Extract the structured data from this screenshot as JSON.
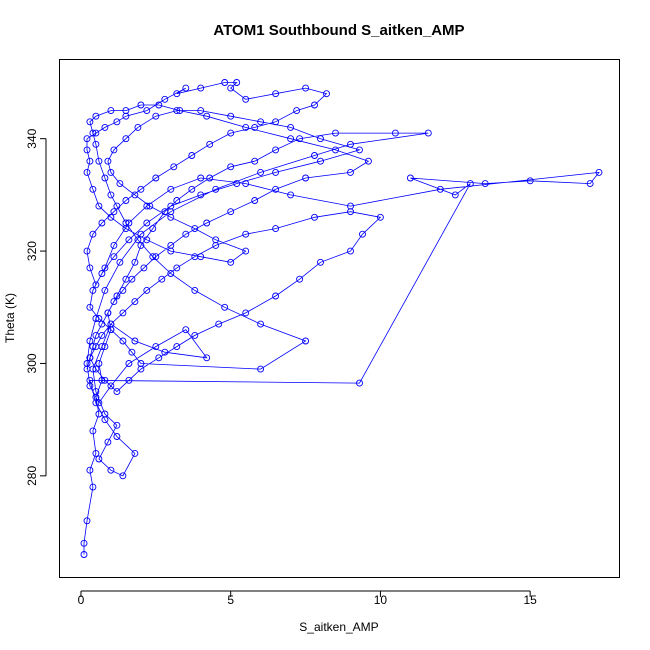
{
  "chart_data": {
    "type": "line",
    "markers": "open-circle",
    "color": "#0000ff",
    "title": "ATOM1 Southbound S_aitken_AMP",
    "xlabel": "S_aitken_AMP",
    "ylabel": "Theta (K)",
    "xlim": [
      -0.7,
      18.0
    ],
    "ylim": [
      262,
      354
    ],
    "xticks": [
      0,
      5,
      10,
      15
    ],
    "yticks": [
      280,
      300,
      320,
      340
    ],
    "grid": false,
    "series": [
      {
        "values_xy": [
          [
            0.1,
            266
          ],
          [
            0.1,
            268
          ],
          [
            0.2,
            272
          ],
          [
            0.4,
            278
          ],
          [
            0.3,
            281
          ],
          [
            0.5,
            284
          ],
          [
            0.4,
            288
          ],
          [
            0.6,
            291
          ],
          [
            0.5,
            294
          ],
          [
            0.7,
            297
          ],
          [
            0.6,
            300
          ],
          [
            0.8,
            303
          ],
          [
            1.0,
            306
          ],
          [
            0.9,
            309
          ],
          [
            1.2,
            312
          ],
          [
            1.5,
            315
          ],
          [
            1.8,
            318
          ],
          [
            2.0,
            321
          ],
          [
            2.4,
            324
          ],
          [
            2.8,
            327
          ],
          [
            3.2,
            329
          ],
          [
            3.7,
            331
          ],
          [
            4.3,
            333
          ],
          [
            5.0,
            335
          ],
          [
            5.8,
            336
          ],
          [
            6.5,
            338
          ],
          [
            7.3,
            340
          ],
          [
            8.5,
            341
          ],
          [
            10.5,
            341
          ],
          [
            11.6,
            341
          ],
          [
            9.0,
            339
          ],
          [
            7.8,
            337
          ],
          [
            6.0,
            334
          ],
          [
            4.5,
            331
          ],
          [
            3.0,
            327
          ],
          [
            2.0,
            323
          ],
          [
            1.3,
            318
          ],
          [
            0.8,
            313
          ],
          [
            0.5,
            308
          ],
          [
            0.3,
            304
          ],
          [
            0.2,
            300
          ],
          [
            0.3,
            296
          ],
          [
            0.6,
            293
          ],
          [
            1.0,
            296
          ],
          [
            1.6,
            300
          ],
          [
            2.5,
            303
          ],
          [
            3.5,
            306
          ],
          [
            4.2,
            301
          ],
          [
            2.8,
            302
          ],
          [
            1.8,
            304
          ],
          [
            1.0,
            307
          ],
          [
            0.7,
            303
          ],
          [
            0.4,
            299
          ],
          [
            0.5,
            295
          ],
          [
            0.8,
            291
          ],
          [
            1.2,
            289
          ],
          [
            0.9,
            286
          ],
          [
            0.6,
            283
          ],
          [
            1.0,
            281
          ],
          [
            1.4,
            280
          ],
          [
            1.8,
            284
          ],
          [
            1.2,
            287
          ],
          [
            0.8,
            290
          ],
          [
            0.5,
            293
          ],
          [
            0.3,
            297
          ],
          [
            9.3,
            296.5
          ],
          [
            13.0,
            332
          ],
          [
            12.5,
            330
          ],
          [
            11.0,
            333
          ],
          [
            13.5,
            332
          ],
          [
            15.0,
            332.5
          ],
          [
            17.0,
            332
          ],
          [
            17.3,
            334
          ],
          [
            12.0,
            331
          ],
          [
            9.0,
            328
          ],
          [
            7.0,
            330
          ],
          [
            5.5,
            332
          ],
          [
            4.0,
            333
          ],
          [
            3.0,
            331
          ],
          [
            2.2,
            328
          ],
          [
            1.6,
            325
          ],
          [
            1.1,
            321
          ],
          [
            0.8,
            317
          ],
          [
            0.5,
            314
          ],
          [
            0.3,
            317
          ],
          [
            0.2,
            320
          ],
          [
            0.4,
            323
          ],
          [
            0.7,
            325
          ],
          [
            1.1,
            327
          ],
          [
            1.5,
            329
          ],
          [
            2.0,
            331
          ],
          [
            2.5,
            333
          ],
          [
            3.1,
            335
          ],
          [
            3.7,
            337
          ],
          [
            4.3,
            339
          ],
          [
            5.0,
            341
          ],
          [
            5.8,
            342
          ],
          [
            6.5,
            343
          ],
          [
            7.2,
            345
          ],
          [
            7.8,
            346
          ],
          [
            8.2,
            348
          ],
          [
            7.5,
            349
          ],
          [
            6.5,
            348
          ],
          [
            5.5,
            347
          ],
          [
            5.0,
            349
          ],
          [
            5.2,
            350
          ],
          [
            4.8,
            350
          ],
          [
            4.0,
            349
          ],
          [
            3.2,
            348
          ],
          [
            3.5,
            349
          ],
          [
            2.8,
            347
          ],
          [
            2.2,
            345
          ],
          [
            1.5,
            344
          ],
          [
            1.2,
            343
          ],
          [
            0.8,
            342
          ],
          [
            0.5,
            341
          ],
          [
            0.2,
            340
          ],
          [
            0.2,
            338
          ],
          [
            0.3,
            336
          ],
          [
            0.2,
            334
          ],
          [
            0.4,
            331
          ],
          [
            0.6,
            328
          ],
          [
            1.0,
            326
          ],
          [
            1.5,
            324
          ],
          [
            2.2,
            322
          ],
          [
            3.0,
            320
          ],
          [
            4.0,
            319
          ],
          [
            5.0,
            318
          ],
          [
            5.5,
            320
          ],
          [
            4.5,
            322
          ],
          [
            3.8,
            324
          ],
          [
            3.0,
            326
          ],
          [
            2.3,
            328
          ],
          [
            1.8,
            330
          ],
          [
            1.3,
            332
          ],
          [
            1.0,
            334
          ],
          [
            0.9,
            336
          ],
          [
            1.1,
            338
          ],
          [
            1.5,
            340
          ],
          [
            1.9,
            342
          ],
          [
            2.5,
            344
          ],
          [
            3.2,
            345
          ],
          [
            4.0,
            345
          ],
          [
            5.0,
            344
          ],
          [
            6.0,
            343
          ],
          [
            7.0,
            342
          ],
          [
            8.0,
            340
          ],
          [
            9.3,
            338
          ],
          [
            8.0,
            336
          ],
          [
            6.5,
            334
          ],
          [
            5.2,
            332
          ],
          [
            4.0,
            330
          ],
          [
            3.0,
            328
          ],
          [
            2.2,
            325
          ],
          [
            1.6,
            322
          ],
          [
            1.1,
            319
          ],
          [
            0.7,
            316
          ],
          [
            0.4,
            313
          ],
          [
            0.3,
            310
          ],
          [
            0.6,
            308
          ],
          [
            1.0,
            306
          ],
          [
            1.4,
            304
          ],
          [
            1.7,
            302
          ],
          [
            2.0,
            300
          ],
          [
            6.0,
            299
          ],
          [
            7.5,
            304
          ],
          [
            6.0,
            307
          ],
          [
            4.8,
            310
          ],
          [
            3.8,
            313
          ],
          [
            3.0,
            316
          ],
          [
            2.4,
            319
          ],
          [
            1.9,
            322
          ],
          [
            1.5,
            325
          ],
          [
            1.2,
            328
          ],
          [
            1.0,
            330
          ],
          [
            0.8,
            333
          ],
          [
            0.6,
            336
          ],
          [
            0.5,
            339
          ],
          [
            0.4,
            341
          ],
          [
            0.3,
            343
          ],
          [
            0.5,
            344
          ],
          [
            1.0,
            345
          ],
          [
            1.5,
            345
          ],
          [
            2.0,
            346
          ],
          [
            2.6,
            346
          ],
          [
            3.3,
            345
          ],
          [
            4.2,
            344
          ],
          [
            5.5,
            342
          ],
          [
            7.0,
            340
          ],
          [
            8.5,
            338
          ],
          [
            9.6,
            336
          ],
          [
            9.0,
            334
          ],
          [
            7.5,
            333
          ],
          [
            6.5,
            331
          ],
          [
            5.8,
            329
          ],
          [
            5.0,
            327
          ],
          [
            4.2,
            325
          ],
          [
            3.5,
            323
          ],
          [
            3.0,
            321
          ],
          [
            2.5,
            319
          ],
          [
            2.1,
            317
          ],
          [
            1.7,
            315
          ],
          [
            1.4,
            313
          ],
          [
            1.1,
            311
          ],
          [
            0.9,
            309
          ],
          [
            0.7,
            307
          ],
          [
            0.5,
            305
          ],
          [
            0.4,
            303
          ],
          [
            0.3,
            301
          ],
          [
            0.5,
            299
          ],
          [
            0.8,
            297
          ],
          [
            1.2,
            295
          ],
          [
            1.6,
            297
          ],
          [
            2.0,
            299
          ],
          [
            2.6,
            301
          ],
          [
            3.2,
            303
          ],
          [
            3.8,
            305
          ],
          [
            4.6,
            307
          ],
          [
            5.5,
            309
          ],
          [
            6.5,
            312
          ],
          [
            7.3,
            315
          ],
          [
            8.0,
            318
          ],
          [
            9.0,
            320
          ],
          [
            9.4,
            323
          ],
          [
            10.0,
            326
          ],
          [
            9.0,
            327
          ],
          [
            7.8,
            326
          ],
          [
            6.5,
            324
          ],
          [
            5.5,
            323
          ],
          [
            4.5,
            321
          ],
          [
            3.8,
            319
          ],
          [
            3.2,
            317
          ],
          [
            2.7,
            315
          ],
          [
            2.2,
            313
          ],
          [
            1.8,
            311
          ],
          [
            1.4,
            309
          ],
          [
            1.0,
            307
          ],
          [
            0.7,
            305
          ],
          [
            0.5,
            303
          ],
          [
            0.3,
            301
          ],
          [
            0.2,
            299
          ]
        ]
      }
    ]
  }
}
